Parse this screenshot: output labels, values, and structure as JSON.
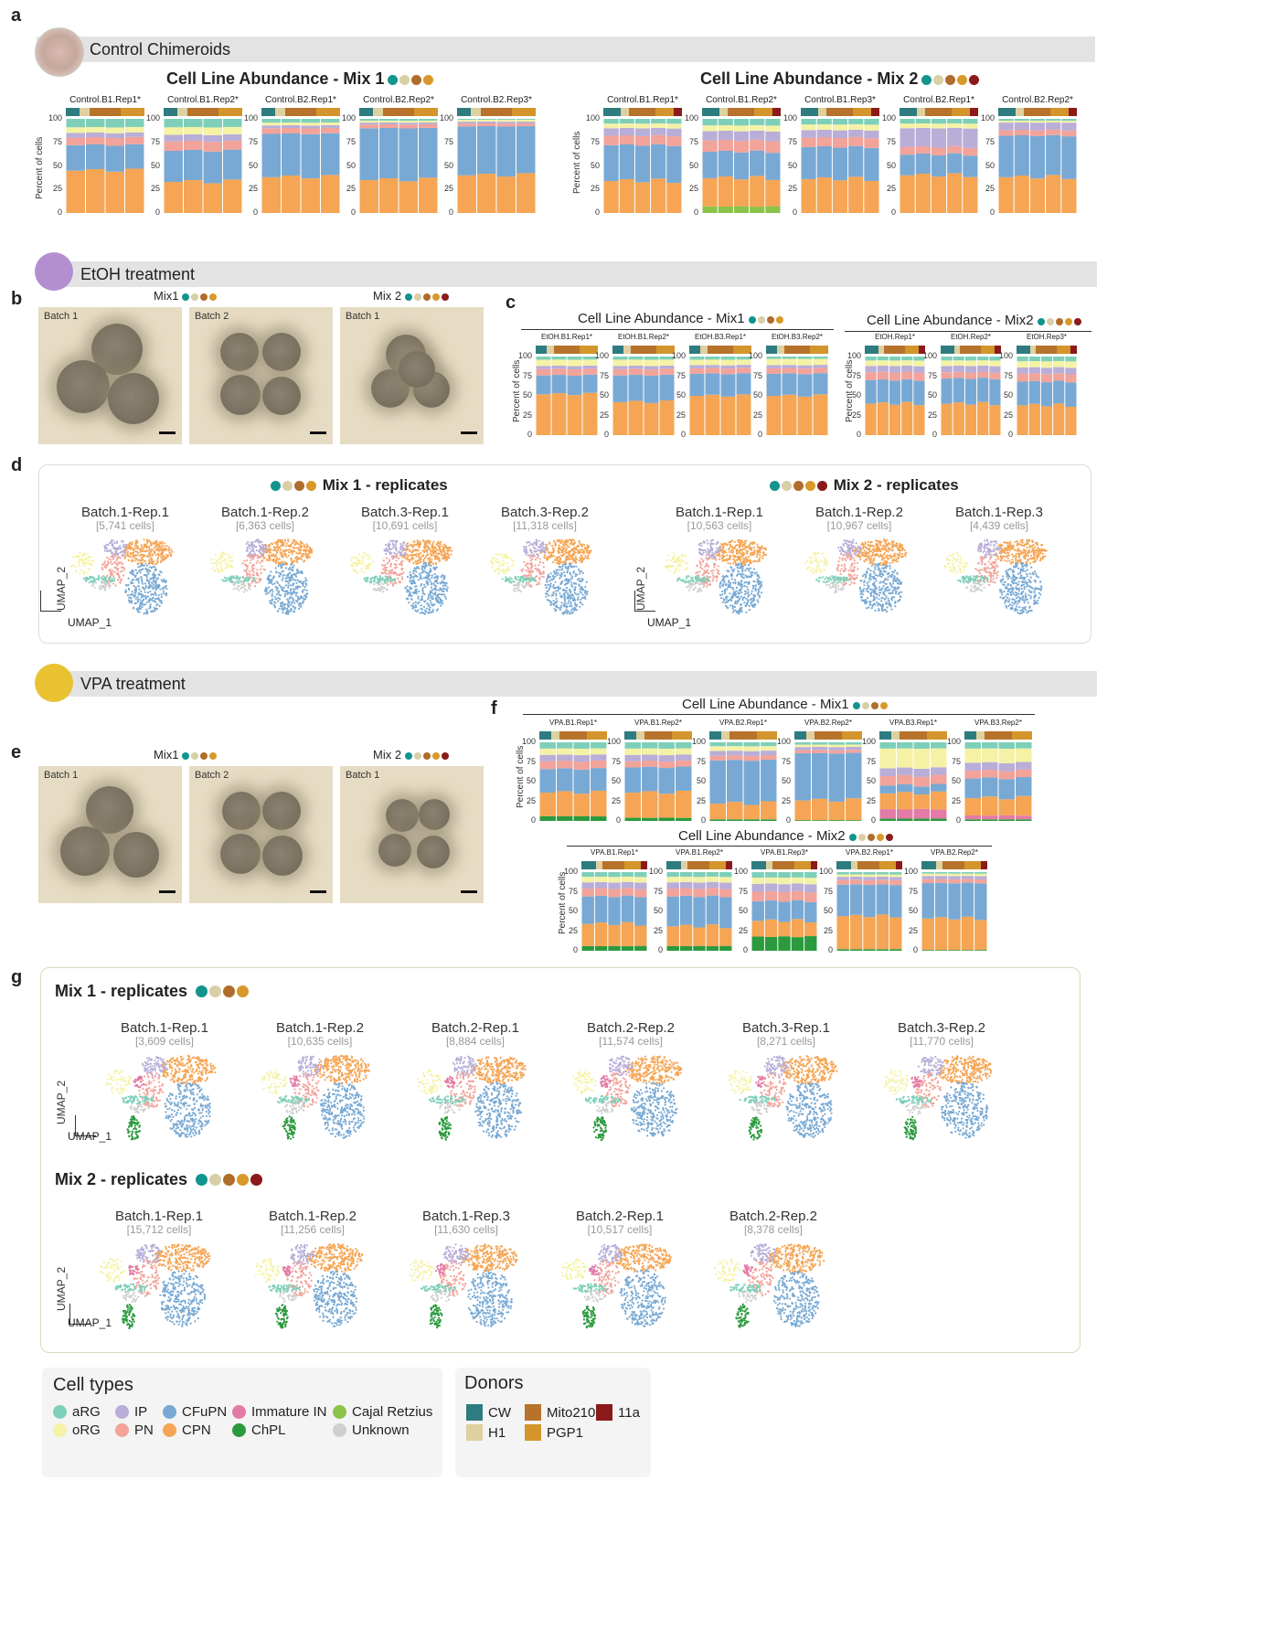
{
  "colors": {
    "CW": "#2e7c80",
    "H1": "#dfd0a0",
    "Mito210": "#b7732b",
    "PGP1": "#d3952c",
    "11a": "#8b1a1a",
    "aRG": "#7ecfb9",
    "oRG": "#f5f2a6",
    "IP": "#b8aed8",
    "PN": "#f2a39a",
    "CFuPN": "#78a9d4",
    "CPN": "#f5a554",
    "ImmatureIN": "#e47aa6",
    "ChPL": "#2b9a3e",
    "CajalRetzius": "#8bc34a",
    "Unknown": "#cfcfcf",
    "etoh": "#b48fd0",
    "vpa": "#e9c232",
    "dot_teal": "#12948c",
    "dot_beige": "#d8cfa7",
    "dot_brown": "#b06c2a",
    "dot_orange": "#d8992a",
    "dot_red": "#8b1a1a"
  },
  "panels": {
    "a": "a",
    "b": "b",
    "c": "c",
    "d": "d",
    "e": "e",
    "f": "f",
    "g": "g"
  },
  "sections": {
    "control": "Control Chimeroids",
    "etoh": "EtOH treatment",
    "vpa": "VPA treatment"
  },
  "a": {
    "mix1_title": "Cell Line Abundance - Mix 1",
    "mix2_title": "Cell Line Abundance - Mix 2",
    "ylabel": "Percent of cells",
    "mix1_reps": [
      "Control.B1.Rep1*",
      "Control.B1.Rep2*",
      "Control.B2.Rep1*",
      "Control.B2.Rep2*",
      "Control.B2.Rep3*"
    ],
    "mix2_reps": [
      "Control.B1.Rep1*",
      "Control.B1.Rep2*",
      "Control.B1.Rep3*",
      "Control.B2.Rep1*",
      "Control.B2.Rep2*"
    ]
  },
  "b": {
    "mix1": "Mix1",
    "mix2": "Mix 2",
    "photos": [
      "Batch 1",
      "Batch 2",
      "Batch 1"
    ]
  },
  "c": {
    "mix1_title": "Cell Line Abundance - Mix1",
    "mix2_title": "Cell Line Abundance - Mix2",
    "ylabel": "Percent of cells",
    "mix1_reps": [
      "EtOH.B1.Rep1*",
      "EtOH.B1.Rep2*",
      "EtOH.B3.Rep1*",
      "EtOH.B3.Rep2*"
    ],
    "mix2_reps": [
      "EtOH.Rep1*",
      "EtOH.Rep2*",
      "EtOH.Rep3*"
    ]
  },
  "d": {
    "mix1_title": "Mix 1 - replicates",
    "mix2_title": "Mix 2 - replicates",
    "umap_x": "UMAP_1",
    "umap_y": "UMAP_2",
    "mix1": [
      {
        "t": "Batch.1-Rep.1",
        "c": "[5,741 cells]"
      },
      {
        "t": "Batch.1-Rep.2",
        "c": "[6,363 cells]"
      },
      {
        "t": "Batch.3-Rep.1",
        "c": "[10,691 cells]"
      },
      {
        "t": "Batch.3-Rep.2",
        "c": "[11,318 cells]"
      }
    ],
    "mix2": [
      {
        "t": "Batch.1-Rep.1",
        "c": "[10,563 cells]"
      },
      {
        "t": "Batch.1-Rep.2",
        "c": "[10,967 cells]"
      },
      {
        "t": "Batch.1-Rep.3",
        "c": "[4,439 cells]"
      }
    ]
  },
  "e": {
    "mix1": "Mix1",
    "mix2": "Mix 2",
    "photos": [
      "Batch 1",
      "Batch 2",
      "Batch 1"
    ]
  },
  "f": {
    "mix1_title": "Cell Line Abundance - Mix1",
    "mix2_title": "Cell Line Abundance - Mix2",
    "ylabel": "Percent of cells",
    "mix1_reps": [
      "VPA.B1.Rep1*",
      "VPA.B1.Rep2*",
      "VPA.B2.Rep1*",
      "VPA.B2.Rep2*",
      "VPA.B3.Rep1*",
      "VPA.B3.Rep2*"
    ],
    "mix2_reps": [
      "VPA.B1.Rep1*",
      "VPA.B1.Rep2*",
      "VPA.B1.Rep3*",
      "VPA.B2.Rep1*",
      "VPA.B2.Rep2*"
    ]
  },
  "g": {
    "mix1_title": "Mix 1 - replicates",
    "mix2_title": "Mix 2 - replicates",
    "umap_x": "UMAP_1",
    "umap_y": "UMAP_2",
    "mix1": [
      {
        "t": "Batch.1-Rep.1",
        "c": "[3,609 cells]"
      },
      {
        "t": "Batch.1-Rep.2",
        "c": "[10,635 cells]"
      },
      {
        "t": "Batch.2-Rep.1",
        "c": "[8,884 cells]"
      },
      {
        "t": "Batch.2-Rep.2",
        "c": "[11,574 cells]"
      },
      {
        "t": "Batch.3-Rep.1",
        "c": "[8,271 cells]"
      },
      {
        "t": "Batch.3-Rep.2",
        "c": "[11,770 cells]"
      }
    ],
    "mix2": [
      {
        "t": "Batch.1-Rep.1",
        "c": "[15,712 cells]"
      },
      {
        "t": "Batch.1-Rep.2",
        "c": "[11,256 cells]"
      },
      {
        "t": "Batch.1-Rep.3",
        "c": "[11,630 cells]"
      },
      {
        "t": "Batch.2-Rep.1",
        "c": "[10,517 cells]"
      },
      {
        "t": "Batch.2-Rep.2",
        "c": "[8,378 cells]"
      }
    ]
  },
  "legend": {
    "cell_types_title": "Cell types",
    "donors_title": "Donors",
    "cell_types": [
      {
        "label": "aRG",
        "color": "#7ecfb9"
      },
      {
        "label": "IP",
        "color": "#b8aed8"
      },
      {
        "label": "CFuPN",
        "color": "#78a9d4"
      },
      {
        "label": "Immature IN",
        "color": "#e47aa6"
      },
      {
        "label": "Cajal Retzius",
        "color": "#8bc34a"
      },
      {
        "label": "oRG",
        "color": "#f5f2a6"
      },
      {
        "label": "PN",
        "color": "#f2a39a"
      },
      {
        "label": "CPN",
        "color": "#f5a554"
      },
      {
        "label": "ChPL",
        "color": "#2b9a3e"
      },
      {
        "label": "Unknown",
        "color": "#cfcfcf"
      }
    ],
    "donors": [
      {
        "label": "CW",
        "color": "#2e7c80"
      },
      {
        "label": "Mito210",
        "color": "#b7732b"
      },
      {
        "label": "11a",
        "color": "#8b1a1a"
      },
      {
        "label": "H1",
        "color": "#dfd0a0"
      },
      {
        "label": "PGP1",
        "color": "#d3952c"
      }
    ]
  },
  "chart_data": [
    {
      "type": "bar",
      "title": "Cell Line Abundance - Mix 1",
      "ylabel": "Percent of cells",
      "categories": [
        "Control.B1.Rep1*",
        "Control.B1.Rep2*",
        "Control.B2.Rep1*",
        "Control.B2.Rep2*",
        "Control.B2.Rep3*"
      ],
      "ylim": [
        0,
        100
      ],
      "stacked": true,
      "series": [
        {
          "name": "CPN",
          "values": [
            45,
            33,
            38,
            35,
            40
          ]
        },
        {
          "name": "CFuPN",
          "values": [
            27,
            33,
            46,
            55,
            52
          ]
        },
        {
          "name": "PN",
          "values": [
            8,
            10,
            6,
            4,
            3
          ]
        },
        {
          "name": "IP",
          "values": [
            5,
            7,
            3,
            2,
            2
          ]
        },
        {
          "name": "oRG",
          "values": [
            6,
            8,
            3,
            2,
            2
          ]
        },
        {
          "name": "aRG",
          "values": [
            9,
            9,
            4,
            2,
            1
          ]
        }
      ]
    },
    {
      "type": "bar",
      "title": "Cell Line Abundance - Mix 2",
      "ylabel": "Percent of cells",
      "categories": [
        "Control.B1.Rep1*",
        "Control.B1.Rep2*",
        "Control.B1.Rep3*",
        "Control.B2.Rep1*",
        "Control.B2.Rep2*"
      ],
      "ylim": [
        0,
        100
      ],
      "stacked": true,
      "series": [
        {
          "name": "CPN",
          "values": [
            34,
            30,
            36,
            40,
            38
          ]
        },
        {
          "name": "CFuPN",
          "values": [
            38,
            28,
            34,
            22,
            44
          ]
        },
        {
          "name": "PN",
          "values": [
            10,
            12,
            10,
            8,
            6
          ]
        },
        {
          "name": "IP",
          "values": [
            8,
            10,
            8,
            20,
            8
          ]
        },
        {
          "name": "oRG",
          "values": [
            5,
            6,
            6,
            5,
            2
          ]
        },
        {
          "name": "aRG",
          "values": [
            5,
            7,
            6,
            5,
            2
          ]
        },
        {
          "name": "Cajal Retzius",
          "values": [
            0,
            7,
            0,
            0,
            0
          ]
        }
      ]
    },
    {
      "type": "bar",
      "title": "Cell Line Abundance - Mix1",
      "ylabel": "Percent of cells",
      "categories": [
        "EtOH.B1.Rep1*",
        "EtOH.B1.Rep2*",
        "EtOH.B3.Rep1*",
        "EtOH.B3.Rep2*"
      ],
      "ylim": [
        0,
        100
      ],
      "stacked": true,
      "series": [
        {
          "name": "CPN",
          "values": [
            52,
            42,
            50,
            50
          ]
        },
        {
          "name": "CFuPN",
          "values": [
            24,
            34,
            28,
            28
          ]
        },
        {
          "name": "PN",
          "values": [
            8,
            8,
            7,
            7
          ]
        },
        {
          "name": "IP",
          "values": [
            4,
            4,
            4,
            4
          ]
        },
        {
          "name": "oRG",
          "values": [
            8,
            8,
            7,
            8
          ]
        },
        {
          "name": "aRG",
          "values": [
            4,
            4,
            4,
            3
          ]
        }
      ]
    },
    {
      "type": "bar",
      "title": "Cell Line Abundance - Mix2",
      "ylabel": "Percent of cells",
      "categories": [
        "EtOH.Rep1*",
        "EtOH.Rep2*",
        "EtOH.Rep3*"
      ],
      "ylim": [
        0,
        100
      ],
      "stacked": true,
      "series": [
        {
          "name": "CPN",
          "values": [
            40,
            40,
            38
          ]
        },
        {
          "name": "CFuPN",
          "values": [
            30,
            32,
            30
          ]
        },
        {
          "name": "PN",
          "values": [
            10,
            8,
            10
          ]
        },
        {
          "name": "IP",
          "values": [
            8,
            8,
            8
          ]
        },
        {
          "name": "oRG",
          "values": [
            7,
            7,
            8
          ]
        },
        {
          "name": "aRG",
          "values": [
            5,
            5,
            6
          ]
        }
      ]
    },
    {
      "type": "bar",
      "title": "Cell Line Abundance - Mix1",
      "ylabel": "Percent of cells",
      "categories": [
        "VPA.B1.Rep1*",
        "VPA.B1.Rep2*",
        "VPA.B2.Rep1*",
        "VPA.B2.Rep2*",
        "VPA.B3.Rep1*",
        "VPA.B3.Rep2*"
      ],
      "ylim": [
        0,
        100
      ],
      "stacked": true,
      "series": [
        {
          "name": "ChPL",
          "values": [
            6,
            4,
            2,
            1,
            3,
            2
          ]
        },
        {
          "name": "Immature IN",
          "values": [
            0,
            0,
            0,
            0,
            12,
            5
          ]
        },
        {
          "name": "CPN",
          "values": [
            30,
            32,
            20,
            25,
            20,
            22
          ]
        },
        {
          "name": "CFuPN",
          "values": [
            30,
            32,
            55,
            60,
            10,
            25
          ]
        },
        {
          "name": "PN",
          "values": [
            10,
            8,
            6,
            4,
            12,
            10
          ]
        },
        {
          "name": "IP",
          "values": [
            8,
            8,
            6,
            4,
            10,
            10
          ]
        },
        {
          "name": "oRG",
          "values": [
            8,
            8,
            6,
            3,
            25,
            18
          ]
        },
        {
          "name": "aRG",
          "values": [
            8,
            8,
            5,
            3,
            8,
            8
          ]
        }
      ]
    },
    {
      "type": "bar",
      "title": "Cell Line Abundance - Mix2",
      "ylabel": "Percent of cells",
      "categories": [
        "VPA.B1.Rep1*",
        "VPA.B1.Rep2*",
        "VPA.B1.Rep3*",
        "VPA.B2.Rep1*",
        "VPA.B2.Rep2*"
      ],
      "ylim": [
        0,
        100
      ],
      "stacked": true,
      "series": [
        {
          "name": "ChPL",
          "values": [
            6,
            6,
            18,
            2,
            1
          ]
        },
        {
          "name": "CPN",
          "values": [
            28,
            25,
            20,
            42,
            40
          ]
        },
        {
          "name": "CFuPN",
          "values": [
            35,
            38,
            25,
            40,
            45
          ]
        },
        {
          "name": "PN",
          "values": [
            10,
            10,
            12,
            6,
            5
          ]
        },
        {
          "name": "IP",
          "values": [
            8,
            8,
            10,
            4,
            4
          ]
        },
        {
          "name": "oRG",
          "values": [
            7,
            7,
            8,
            3,
            3
          ]
        },
        {
          "name": "aRG",
          "values": [
            6,
            6,
            7,
            3,
            2
          ]
        }
      ]
    }
  ]
}
